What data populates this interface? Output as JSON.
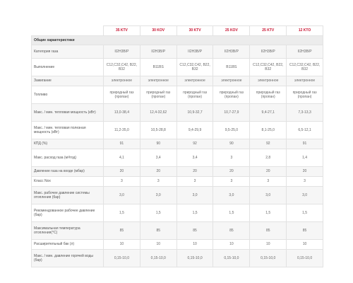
{
  "models": [
    "35 KTV",
    "30 KOV",
    "30 KTV",
    "25 KOV",
    "25 KTV",
    "12 KTO"
  ],
  "section_title": "Общие характеристики",
  "rows": [
    {
      "label": "Категория газа",
      "values": [
        "II2H3B/P",
        "II2H3B/P",
        "II2H3B/P",
        "II2H3B/P",
        "II2H3B/P",
        "II2H3B/P"
      ]
    },
    {
      "label": "Выполнение",
      "values": [
        "C12,C32,C42, B22, B32",
        "B11BS",
        "C12,C32,C42, B22, B32",
        "B11BS",
        "C12,C32,C42, B22, B32",
        "C12,C32,C42, B22, B32"
      ]
    },
    {
      "label": "Зажигание",
      "values": [
        "электронное",
        "электронное",
        "электронное",
        "электронное",
        "электронное",
        "электронное"
      ]
    },
    {
      "label": "Топливо",
      "values": [
        "природный газ (пропан)",
        "природный газ (пропан)",
        "природный газ (пропан)",
        "природный газ (пропан)",
        "природный газ (пропан)",
        "природный газ (пропан)"
      ]
    },
    {
      "label": "Макс. / мин. тепловая мощность (кВт)",
      "values": [
        "13,0-38,4",
        "12,4-32,62",
        "10,9-32,7",
        "10,7-27,9",
        "9,4-27,1",
        "7,3-13,3"
      ]
    },
    {
      "label": "Макс. / мин. тепловая полезная мощность (кВт)",
      "values": [
        "11,2-35,0",
        "10,5-28,8",
        "9,4-29,9",
        "9,5-25,0",
        "8,1-25,0",
        "6,5-12,1"
      ]
    },
    {
      "label": "КПД (%)",
      "values": [
        "91",
        "90",
        "92",
        "90",
        "92",
        "91"
      ]
    },
    {
      "label": "Макс. расход газа (м³/год)",
      "values": [
        "4,1",
        "3,4",
        "3,4",
        "3",
        "2,8",
        "1,4"
      ]
    },
    {
      "label": "Давление газа на входе (мбар)",
      "values": [
        "20",
        "20",
        "20",
        "20",
        "20",
        "20"
      ]
    },
    {
      "label": "Класс Nox",
      "values": [
        "3",
        "3",
        "3",
        "3",
        "3",
        "3"
      ]
    },
    {
      "label": "Макс. рабочее давление системы отопления (бар)",
      "values": [
        "3,0",
        "3,0",
        "3,0",
        "3,0",
        "3,0",
        "3,0"
      ]
    },
    {
      "label": "Рекомендованное рабочее давление (бар)",
      "values": [
        "1,5",
        "1,5",
        "1,5",
        "1,5",
        "1,5",
        "1,5"
      ]
    },
    {
      "label": "Максимальная температура отопления(°C)",
      "values": [
        "85",
        "85",
        "85",
        "85",
        "85",
        "85"
      ]
    },
    {
      "label": "Расширительный бак (л)",
      "values": [
        "10",
        "10",
        "10",
        "10",
        "10",
        "10"
      ]
    },
    {
      "label": "Макс. / мин. давление горячей воды (бар)",
      "values": [
        "0,15-10,0",
        "0,15-10,0",
        "0,15-10,0",
        "0,15-10,0",
        "0,15-10,0",
        "0,15-10,0"
      ]
    }
  ]
}
